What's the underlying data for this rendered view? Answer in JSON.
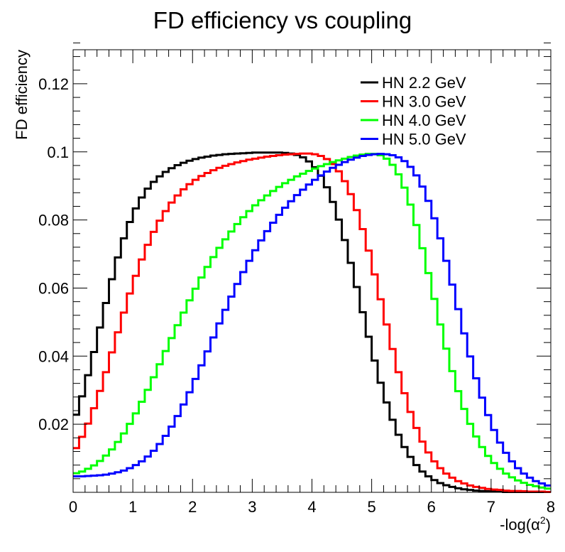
{
  "chart_data": {
    "type": "line",
    "title": "FD efficiency vs coupling",
    "xlabel": "-log(α",
    "xlabel_sup": "2",
    "xlabel_close": ")",
    "ylabel": "FD efficiency",
    "xlim": [
      0,
      8
    ],
    "ylim": [
      0,
      0.13
    ],
    "x_ticks": [
      "0",
      "1",
      "2",
      "3",
      "4",
      "5",
      "6",
      "7",
      "8"
    ],
    "y_ticks": [
      "0.02",
      "0.04",
      "0.06",
      "0.08",
      "0.1",
      "0.12"
    ],
    "grid": false,
    "legend_position": "top-right",
    "x": [
      0.05,
      0.15,
      0.25,
      0.35,
      0.45,
      0.55,
      0.65,
      0.75,
      0.85,
      0.95,
      1.05,
      1.15,
      1.25,
      1.35,
      1.45,
      1.55,
      1.65,
      1.75,
      1.85,
      1.95,
      2.05,
      2.15,
      2.25,
      2.35,
      2.45,
      2.55,
      2.65,
      2.75,
      2.85,
      2.95,
      3.05,
      3.15,
      3.25,
      3.35,
      3.45,
      3.55,
      3.65,
      3.75,
      3.85,
      3.95,
      4.05,
      4.15,
      4.25,
      4.35,
      4.45,
      4.55,
      4.65,
      4.75,
      4.85,
      4.95,
      5.05,
      5.15,
      5.25,
      5.35,
      5.45,
      5.55,
      5.65,
      5.75,
      5.85,
      5.95,
      6.05,
      6.15,
      6.25,
      6.35,
      6.45,
      6.55,
      6.65,
      6.75,
      6.85,
      6.95,
      7.05,
      7.15,
      7.25,
      7.35,
      7.45,
      7.55,
      7.65,
      7.75,
      7.85,
      7.95
    ],
    "series": [
      {
        "name": "HN 2.2 GeV",
        "color": "#000000",
        "values": [
          0.0228,
          0.0282,
          0.0344,
          0.0412,
          0.0484,
          0.0556,
          0.0626,
          0.069,
          0.0746,
          0.0794,
          0.0834,
          0.0866,
          0.0892,
          0.0912,
          0.0928,
          0.0941,
          0.0952,
          0.0961,
          0.0968,
          0.0974,
          0.0979,
          0.0983,
          0.0986,
          0.0989,
          0.0991,
          0.0993,
          0.0994,
          0.0995,
          0.0996,
          0.0997,
          0.0998,
          0.0998,
          0.0998,
          0.0998,
          0.0998,
          0.0997,
          0.0995,
          0.0991,
          0.0984,
          0.0972,
          0.0955,
          0.093,
          0.0896,
          0.0853,
          0.0801,
          0.0741,
          0.0674,
          0.0603,
          0.0529,
          0.0457,
          0.0387,
          0.0322,
          0.0264,
          0.0213,
          0.0169,
          0.0133,
          0.0104,
          0.008,
          0.0061,
          0.0047,
          0.0036,
          0.0027,
          0.0021,
          0.0016,
          0.0012,
          0.0009,
          0.0007,
          0.0005,
          0.0004,
          0.0003,
          0.0002,
          0.0002,
          0.0001,
          0.0001,
          0.0001,
          0.0001,
          0.0001,
          0.0001,
          0.0001,
          0.0001
        ]
      },
      {
        "name": "HN 3.0 GeV",
        "color": "#ff0000",
        "values": [
          0.013,
          0.0163,
          0.0202,
          0.0247,
          0.0298,
          0.0353,
          0.0411,
          0.047,
          0.0528,
          0.0584,
          0.0636,
          0.0684,
          0.0727,
          0.0765,
          0.0798,
          0.0826,
          0.0851,
          0.0872,
          0.089,
          0.0905,
          0.0918,
          0.0929,
          0.0938,
          0.0946,
          0.0953,
          0.0959,
          0.0964,
          0.0969,
          0.0973,
          0.0977,
          0.098,
          0.0983,
          0.0986,
          0.0988,
          0.099,
          0.0992,
          0.0993,
          0.0994,
          0.0995,
          0.0995,
          0.0993,
          0.0988,
          0.0979,
          0.0964,
          0.0943,
          0.0914,
          0.0876,
          0.0829,
          0.0773,
          0.071,
          0.064,
          0.0567,
          0.0493,
          0.0421,
          0.0353,
          0.0291,
          0.0236,
          0.0189,
          0.0149,
          0.0117,
          0.0091,
          0.0071,
          0.0055,
          0.0043,
          0.0033,
          0.0026,
          0.002,
          0.0016,
          0.0013,
          0.001,
          0.0008,
          0.0007,
          0.0005,
          0.0004,
          0.0004,
          0.0003,
          0.0002,
          0.0002,
          0.0002,
          0.0001
        ]
      },
      {
        "name": "HN 4.0 GeV",
        "color": "#00ff00",
        "values": [
          0.0056,
          0.0061,
          0.0069,
          0.0079,
          0.0092,
          0.0108,
          0.0126,
          0.0148,
          0.0173,
          0.0201,
          0.0232,
          0.0266,
          0.0301,
          0.0338,
          0.0376,
          0.0415,
          0.0453,
          0.0491,
          0.0528,
          0.0564,
          0.0598,
          0.0631,
          0.0662,
          0.0691,
          0.0718,
          0.0743,
          0.0766,
          0.0788,
          0.0808,
          0.0826,
          0.0843,
          0.0858,
          0.0872,
          0.0885,
          0.0897,
          0.0908,
          0.0918,
          0.0928,
          0.0936,
          0.0944,
          0.0951,
          0.0958,
          0.0964,
          0.097,
          0.0975,
          0.098,
          0.0985,
          0.0989,
          0.0992,
          0.0994,
          0.0994,
          0.099,
          0.098,
          0.0962,
          0.0934,
          0.0895,
          0.0845,
          0.0785,
          0.0717,
          0.0644,
          0.0568,
          0.0493,
          0.0422,
          0.0356,
          0.0297,
          0.0245,
          0.0201,
          0.0164,
          0.0133,
          0.0107,
          0.0086,
          0.0069,
          0.0055,
          0.0044,
          0.0035,
          0.0028,
          0.0022,
          0.0018,
          0.0014,
          0.0011
        ]
      },
      {
        "name": "HN 5.0 GeV",
        "color": "#0000ff",
        "values": [
          0.0047,
          0.0047,
          0.0048,
          0.0049,
          0.005,
          0.0052,
          0.0055,
          0.0059,
          0.0064,
          0.0071,
          0.008,
          0.0091,
          0.0105,
          0.0122,
          0.0142,
          0.0166,
          0.0193,
          0.0224,
          0.0258,
          0.0294,
          0.0333,
          0.0373,
          0.0414,
          0.0455,
          0.0496,
          0.0536,
          0.0575,
          0.0612,
          0.0647,
          0.068,
          0.0711,
          0.074,
          0.0767,
          0.0792,
          0.0815,
          0.0836,
          0.0855,
          0.0873,
          0.0889,
          0.0904,
          0.0918,
          0.0931,
          0.0942,
          0.0953,
          0.0962,
          0.097,
          0.0977,
          0.0983,
          0.0988,
          0.0991,
          0.0993,
          0.0994,
          0.0993,
          0.099,
          0.0984,
          0.0973,
          0.0956,
          0.0931,
          0.0898,
          0.0856,
          0.0805,
          0.0746,
          0.068,
          0.061,
          0.0538,
          0.0467,
          0.0399,
          0.0335,
          0.0278,
          0.0227,
          0.0183,
          0.0146,
          0.0116,
          0.0091,
          0.0071,
          0.0055,
          0.0043,
          0.0033,
          0.0026,
          0.002
        ]
      }
    ]
  }
}
